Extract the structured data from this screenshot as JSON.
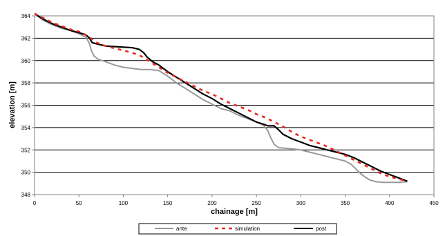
{
  "chart_data": {
    "type": "line",
    "title": "",
    "xlabel": "chainage [m]",
    "ylabel": "elevation [m]",
    "xlim": [
      0,
      450
    ],
    "ylim": [
      348,
      364
    ],
    "xticks": [
      0,
      50,
      100,
      150,
      200,
      250,
      300,
      350,
      400,
      450
    ],
    "yticks": [
      348,
      350,
      352,
      354,
      356,
      358,
      360,
      362,
      364
    ],
    "grid": "horizontal",
    "legend_position": "bottom",
    "series": [
      {
        "name": "ante",
        "color": "#999999",
        "style": "solid",
        "x": [
          0,
          10,
          20,
          30,
          40,
          50,
          58,
          62,
          64,
          67,
          72,
          80,
          90,
          100,
          110,
          120,
          130,
          140,
          150,
          160,
          170,
          180,
          190,
          200,
          210,
          220,
          230,
          240,
          250,
          258,
          263,
          266,
          270,
          275,
          282,
          290,
          300,
          310,
          320,
          330,
          340,
          350,
          357,
          362,
          367,
          372,
          378,
          385,
          393,
          400,
          410,
          420
        ],
        "y": [
          364.2,
          363.6,
          363.2,
          362.9,
          362.7,
          362.4,
          362.1,
          361.5,
          360.9,
          360.4,
          360.1,
          359.9,
          359.6,
          359.4,
          359.3,
          359.2,
          359.2,
          359.1,
          358.6,
          358.0,
          357.5,
          357.0,
          356.5,
          356.1,
          355.7,
          355.5,
          355.1,
          354.8,
          354.5,
          354.2,
          353.7,
          353.1,
          352.5,
          352.2,
          352.15,
          352.1,
          352.0,
          351.8,
          351.6,
          351.4,
          351.2,
          351.0,
          350.7,
          350.3,
          349.9,
          349.6,
          349.3,
          349.15,
          349.1,
          349.1,
          349.1,
          349.15
        ]
      },
      {
        "name": "simulation",
        "color": "#e8291c",
        "style": "dashed",
        "x": [
          0,
          10,
          20,
          30,
          40,
          50,
          60,
          70,
          80,
          90,
          100,
          110,
          120,
          130,
          140,
          150,
          160,
          170,
          180,
          190,
          200,
          210,
          220,
          230,
          240,
          250,
          260,
          270,
          280,
          290,
          300,
          310,
          320,
          330,
          340,
          350,
          360,
          370,
          380,
          390,
          400,
          410,
          420
        ],
        "y": [
          364.2,
          363.8,
          363.4,
          363.1,
          362.8,
          362.6,
          362.2,
          361.6,
          361.3,
          361.1,
          360.9,
          360.7,
          360.4,
          359.9,
          359.4,
          358.9,
          358.5,
          358.1,
          357.7,
          357.3,
          357.0,
          356.6,
          356.2,
          355.9,
          355.6,
          355.2,
          354.9,
          354.5,
          354.1,
          353.6,
          353.2,
          352.9,
          352.6,
          352.3,
          351.9,
          351.5,
          351.1,
          350.7,
          350.3,
          349.9,
          349.6,
          349.4,
          349.2
        ]
      },
      {
        "name": "post",
        "color": "#000000",
        "style": "solid",
        "x": [
          0,
          10,
          20,
          30,
          40,
          50,
          58,
          62,
          65,
          70,
          80,
          90,
          100,
          110,
          118,
          123,
          127,
          133,
          140,
          150,
          160,
          170,
          180,
          190,
          200,
          210,
          220,
          230,
          240,
          250,
          258,
          263,
          270,
          275,
          280,
          290,
          300,
          310,
          320,
          330,
          340,
          350,
          360,
          370,
          380,
          390,
          400,
          410,
          420
        ],
        "y": [
          364.2,
          363.7,
          363.3,
          363.0,
          362.7,
          362.5,
          362.3,
          362.0,
          361.6,
          361.5,
          361.3,
          361.25,
          361.2,
          361.15,
          361.0,
          360.7,
          360.3,
          359.9,
          359.6,
          359.0,
          358.5,
          358.0,
          357.5,
          357.0,
          356.6,
          356.1,
          355.7,
          355.3,
          354.9,
          354.5,
          354.3,
          354.15,
          354.15,
          353.8,
          353.4,
          353.0,
          352.7,
          352.4,
          352.2,
          352.0,
          351.8,
          351.6,
          351.3,
          350.9,
          350.5,
          350.1,
          349.8,
          349.5,
          349.2
        ]
      }
    ]
  }
}
